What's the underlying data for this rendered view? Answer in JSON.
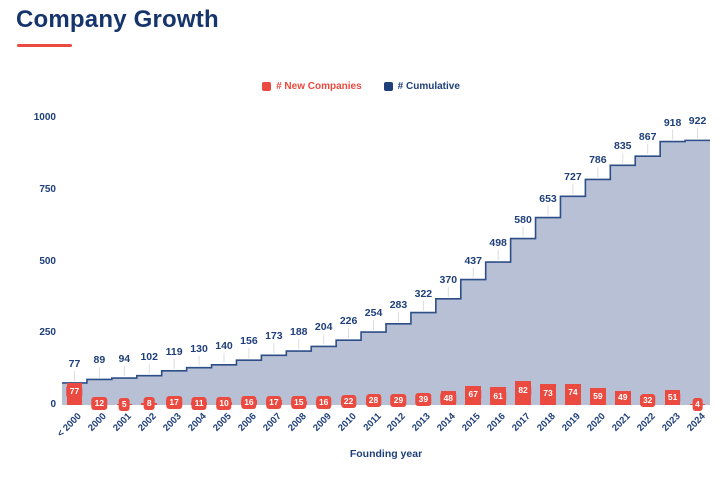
{
  "title": "Company Growth",
  "legend": {
    "new_companies_label": "# New Companies",
    "cumulative_label": "# Cumulative"
  },
  "x_axis_title": "Founding year",
  "style": {
    "accent_red": "#EA4A3F",
    "navy_text": "#1E3F7A",
    "title_navy": "#17356D",
    "step_line": "#2E4E87",
    "area_fill": "#B7C0D4",
    "leader_line": "#DCDCDC",
    "background": "#FFFFFF"
  },
  "chart_data": {
    "type": "bar",
    "subtype": "combo-bar-and-step-area",
    "title": "Company Growth",
    "xlabel": "Founding year",
    "ylabel": "",
    "ylim": [
      0,
      1000
    ],
    "y_ticks": [
      0,
      250,
      500,
      750,
      1000
    ],
    "grid": false,
    "legend_position": "top-center",
    "categories": [
      "< 2000",
      "2000",
      "2001",
      "2002",
      "2003",
      "2004",
      "2005",
      "2006",
      "2007",
      "2008",
      "2009",
      "2010",
      "2011",
      "2012",
      "2013",
      "2014",
      "2015",
      "2016",
      "2017",
      "2018",
      "2019",
      "2020",
      "2021",
      "2022",
      "2023",
      "2024"
    ],
    "series": [
      {
        "name": "# New Companies",
        "type": "bar",
        "color": "#EA4A3F",
        "values": [
          77,
          12,
          5,
          8,
          17,
          11,
          10,
          16,
          17,
          15,
          16,
          22,
          28,
          29,
          39,
          48,
          67,
          61,
          82,
          73,
          74,
          59,
          49,
          32,
          51,
          4
        ]
      },
      {
        "name": "# Cumulative",
        "type": "step-area",
        "line_color": "#2E4E87",
        "fill_color": "#B7C0D4",
        "values": [
          77,
          89,
          94,
          102,
          119,
          130,
          140,
          156,
          173,
          188,
          204,
          226,
          254,
          283,
          322,
          370,
          437,
          498,
          580,
          653,
          727,
          786,
          835,
          867,
          918,
          922
        ]
      }
    ]
  }
}
